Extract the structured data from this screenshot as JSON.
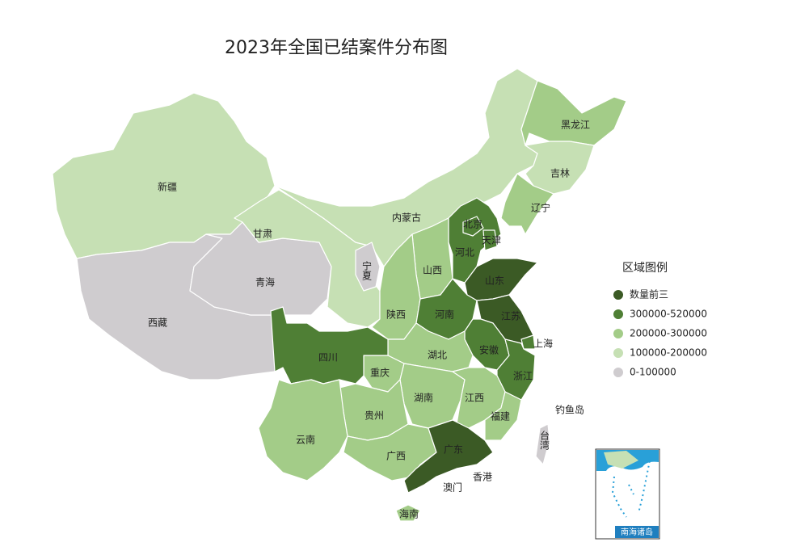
{
  "title": "2023年全国已结案件分布图",
  "legend": {
    "title": "区域图例",
    "items": [
      {
        "label": "数量前三",
        "color": "#3b5a25"
      },
      {
        "label": "300000-520000",
        "color": "#4f7f35"
      },
      {
        "label": "200000-300000",
        "color": "#a3cc88"
      },
      {
        "label": "100000-200000",
        "color": "#c6e0b4"
      },
      {
        "label": "0-100000",
        "color": "#cfcccf"
      }
    ]
  },
  "regions": [
    {
      "name": "新疆",
      "tier": 3
    },
    {
      "name": "西藏",
      "tier": 4
    },
    {
      "name": "青海",
      "tier": 4
    },
    {
      "name": "甘肃",
      "tier": 3
    },
    {
      "name": "内蒙古",
      "tier": 3
    },
    {
      "name": "黑龙江",
      "tier": 2
    },
    {
      "name": "吉林",
      "tier": 3
    },
    {
      "name": "辽宁",
      "tier": 2
    },
    {
      "name": "河北",
      "tier": 1
    },
    {
      "name": "北京",
      "tier": 1
    },
    {
      "name": "天津",
      "tier": 1
    },
    {
      "name": "山西",
      "tier": 2
    },
    {
      "name": "宁夏",
      "tier": 4
    },
    {
      "name": "陕西",
      "tier": 2
    },
    {
      "name": "山东",
      "tier": 0
    },
    {
      "name": "河南",
      "tier": 1
    },
    {
      "name": "江苏",
      "tier": 0
    },
    {
      "name": "上海",
      "tier": 1
    },
    {
      "name": "安徽",
      "tier": 1
    },
    {
      "name": "浙江",
      "tier": 1
    },
    {
      "name": "湖北",
      "tier": 2
    },
    {
      "name": "重庆",
      "tier": 2
    },
    {
      "name": "四川",
      "tier": 1
    },
    {
      "name": "湖南",
      "tier": 2
    },
    {
      "name": "江西",
      "tier": 2
    },
    {
      "name": "福建",
      "tier": 2
    },
    {
      "name": "贵州",
      "tier": 2
    },
    {
      "name": "云南",
      "tier": 2
    },
    {
      "name": "广西",
      "tier": 2
    },
    {
      "name": "广东",
      "tier": 0
    },
    {
      "name": "海南",
      "tier": 2
    },
    {
      "name": "台湾",
      "tier": 4
    }
  ],
  "places": [
    "钓鱼岛",
    "香港",
    "澳门"
  ],
  "inset": {
    "label": "南海诸岛"
  }
}
